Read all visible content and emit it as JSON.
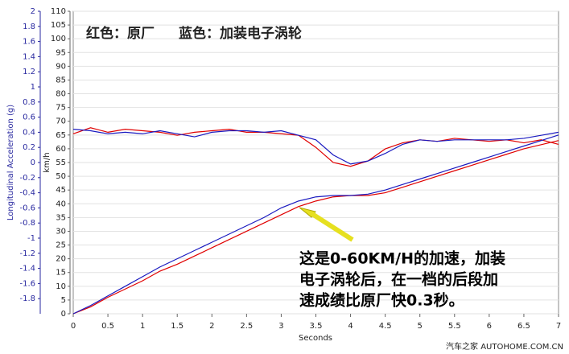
{
  "chart_data": {
    "type": "line",
    "legend": [
      {
        "text": "红色：原厂",
        "color": "#e00000"
      },
      {
        "text": "蓝色：加装电子涡轮",
        "color": "#1a1ac0"
      }
    ],
    "ylabel": "Longitudinal Acceleration (g)",
    "y2label": "km/h",
    "xlabel": "Seconds",
    "annotation": [
      "这是0-60KM/H的加速，加装",
      "电子涡轮后，在一档的后段加",
      "速成绩比原厂快0.3秒。"
    ],
    "watermark": "汽车之家 AUTOHOME.COM.CN",
    "x": [
      0,
      0.25,
      0.5,
      0.75,
      1,
      1.25,
      1.5,
      1.75,
      2,
      2.25,
      2.5,
      2.75,
      3,
      3.25,
      3.5,
      3.75,
      4,
      4.25,
      4.5,
      4.75,
      5,
      5.25,
      5.5,
      5.75,
      6,
      6.25,
      6.5,
      6.75,
      7
    ],
    "series": [
      {
        "color": "#e00000",
        "axis": "y",
        "values": [
          0.38,
          0.46,
          0.4,
          0.44,
          0.42,
          0.4,
          0.36,
          0.4,
          0.42,
          0.44,
          0.4,
          0.4,
          0.38,
          0.36,
          0.2,
          0.0,
          -0.05,
          0.02,
          0.18,
          0.26,
          0.3,
          0.28,
          0.32,
          0.3,
          0.28,
          0.3,
          0.26,
          0.3,
          0.24
        ]
      },
      {
        "color": "#1a1ac0",
        "axis": "y",
        "values": [
          0.44,
          0.42,
          0.38,
          0.4,
          0.38,
          0.42,
          0.38,
          0.34,
          0.4,
          0.42,
          0.42,
          0.4,
          0.42,
          0.36,
          0.3,
          0.1,
          -0.02,
          0.02,
          0.12,
          0.24,
          0.3,
          0.28,
          0.3,
          0.3,
          0.3,
          0.3,
          0.32,
          0.36,
          0.4
        ]
      },
      {
        "color": "#e00000",
        "axis": "y2",
        "values": [
          0,
          2.5,
          6,
          9,
          12,
          15.5,
          18,
          21,
          24,
          27,
          30,
          33,
          36,
          39,
          41,
          42.5,
          43,
          43,
          44,
          46,
          48,
          50,
          52,
          54,
          56,
          58,
          60,
          61.5,
          63
        ]
      },
      {
        "color": "#1a1ac0",
        "axis": "y2",
        "values": [
          0,
          3,
          6.5,
          10,
          13.5,
          17,
          20,
          23,
          26,
          29,
          32,
          35,
          38.5,
          41,
          42.5,
          43,
          43,
          43.5,
          45,
          47,
          49,
          51,
          53,
          55,
          57,
          59,
          61,
          63,
          65
        ]
      }
    ],
    "xlim": [
      0,
      7
    ],
    "xticks": [
      0,
      0.5,
      1,
      1.5,
      2,
      2.5,
      3,
      3.5,
      4,
      4.5,
      5,
      5.5,
      6,
      6.5,
      7
    ],
    "ylim": [
      -2,
      2
    ],
    "yticks": [
      -1.8,
      -1.6,
      -1.4,
      -1.2,
      -1,
      -0.8,
      -0.6,
      -0.4,
      -0.2,
      0,
      0.2,
      0.4,
      0.6,
      0.8,
      1,
      1.2,
      1.4,
      1.6,
      1.8,
      2
    ],
    "y2lim": [
      0,
      110
    ],
    "y2ticks": [
      0,
      5,
      10,
      15,
      20,
      25,
      30,
      35,
      40,
      45,
      50,
      55,
      60,
      65,
      70,
      75,
      80,
      85,
      90,
      95,
      100,
      105,
      110
    ],
    "grid": true
  }
}
